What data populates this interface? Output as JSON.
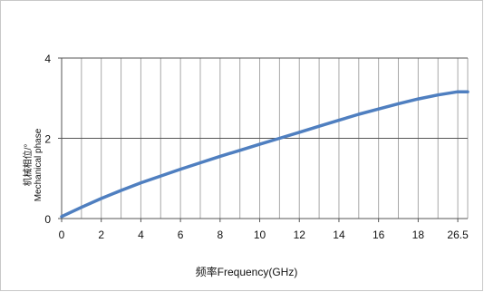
{
  "chart_data": {
    "type": "line",
    "xlabel": "频率Frequency(GHz)",
    "ylabel_line1": "机械相位/°",
    "ylabel_line2": "Mechanical phase",
    "xlim": [
      0,
      26.5
    ],
    "ylim": [
      0,
      4
    ],
    "x_tick_labels": [
      "0",
      "2",
      "4",
      "6",
      "8",
      "10",
      "12",
      "14",
      "16",
      "18",
      "26.5"
    ],
    "y_tick_labels": [
      "0",
      "2",
      "4"
    ],
    "grid": true,
    "colors": {
      "line": "#4f7fc0",
      "grid": "#a8a8a8",
      "axis": "#555555"
    },
    "series": [
      {
        "x": [
          0,
          1,
          2,
          3,
          4,
          5,
          6,
          7,
          8,
          9,
          10,
          11,
          12,
          13,
          14,
          15,
          16,
          17,
          18,
          19,
          20,
          20.5
        ],
        "y": [
          0.05,
          0.28,
          0.5,
          0.7,
          0.89,
          1.06,
          1.23,
          1.39,
          1.55,
          1.7,
          1.85,
          2.0,
          2.15,
          2.3,
          2.45,
          2.6,
          2.73,
          2.86,
          2.98,
          3.08,
          3.16,
          3.16
        ]
      }
    ]
  }
}
